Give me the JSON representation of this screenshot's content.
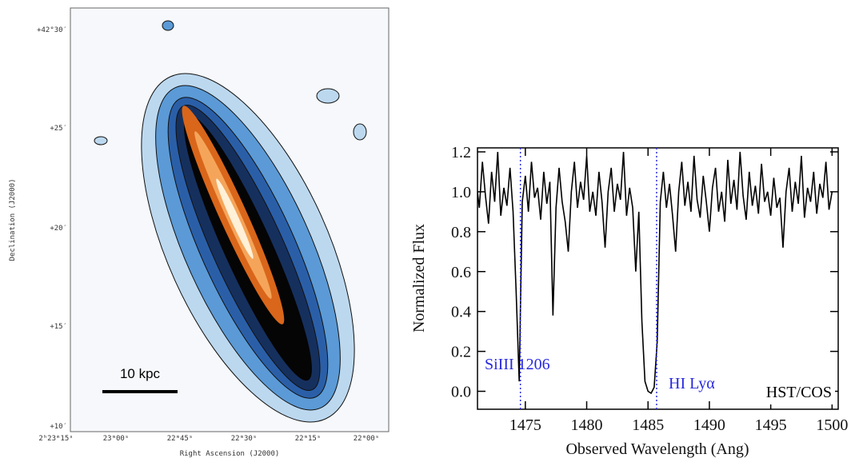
{
  "image_panel": {
    "yticks": [
      "+42°30′",
      "+25′",
      "+20′",
      "+15′",
      "+10′"
    ],
    "xticks": [
      "2ʰ23ᵐ15ˢ",
      "23ᵐ00ˢ",
      "22ᵐ45ˢ",
      "22ᵐ30ˢ",
      "22ᵐ15ˢ",
      "22ᵐ00ˢ"
    ],
    "ylabel": "Declination (J2000)",
    "xlabel": "Right Ascension (J2000)",
    "scale_bar": "10 kpc"
  },
  "chart_data": {
    "type": "line",
    "color": "#000000",
    "xlabel": "Observed Wavelength (Ang)",
    "ylabel": "Normalized Flux",
    "xlim": [
      1471.1,
      1500.5
    ],
    "ylim": [
      -0.09,
      1.22
    ],
    "xticks": [
      1475,
      1480,
      1485,
      1490,
      1495,
      1500
    ],
    "yticks": [
      {
        "value": 0,
        "label": "0.0"
      },
      0.2,
      0.4,
      0.6,
      0.8,
      {
        "value": 1,
        "label": "1.0"
      },
      1.2
    ],
    "grid": false,
    "vlines": [
      1474.6,
      1485.7
    ],
    "vline_color": "#3030e0",
    "annotations": [
      {
        "text": "SiIII 1206",
        "color": "#2828e0"
      },
      {
        "text": "HI Lyα",
        "color": "#2828e0"
      },
      {
        "text": "HST/COS",
        "color": "#000000"
      }
    ],
    "x": [
      1471.0,
      1471.25,
      1471.5,
      1471.75,
      1472.0,
      1472.25,
      1472.5,
      1472.75,
      1473.0,
      1473.25,
      1473.5,
      1473.75,
      1474.0,
      1474.25,
      1474.5,
      1474.75,
      1475.0,
      1475.25,
      1475.5,
      1475.75,
      1476.0,
      1476.25,
      1476.5,
      1476.75,
      1477.0,
      1477.25,
      1477.5,
      1477.75,
      1478.0,
      1478.25,
      1478.5,
      1478.75,
      1479.0,
      1479.25,
      1479.5,
      1479.75,
      1480.0,
      1480.25,
      1480.5,
      1480.75,
      1481.0,
      1481.25,
      1481.5,
      1481.75,
      1482.0,
      1482.25,
      1482.5,
      1482.75,
      1483.0,
      1483.25,
      1483.5,
      1483.75,
      1484.0,
      1484.25,
      1484.5,
      1484.75,
      1485.0,
      1485.25,
      1485.5,
      1485.75,
      1486.0,
      1486.25,
      1486.5,
      1486.75,
      1487.0,
      1487.25,
      1487.5,
      1487.75,
      1488.0,
      1488.25,
      1488.5,
      1488.75,
      1489.0,
      1489.25,
      1489.5,
      1489.75,
      1490.0,
      1490.25,
      1490.5,
      1490.75,
      1491.0,
      1491.25,
      1491.5,
      1491.75,
      1492.0,
      1492.25,
      1492.5,
      1492.75,
      1493.0,
      1493.25,
      1493.5,
      1493.75,
      1494.0,
      1494.25,
      1494.5,
      1494.75,
      1495.0,
      1495.25,
      1495.5,
      1495.75,
      1496.0,
      1496.25,
      1496.5,
      1496.75,
      1497.0,
      1497.25,
      1497.5,
      1497.75,
      1498.0,
      1498.25,
      1498.5,
      1498.75,
      1499.0,
      1499.25,
      1499.5,
      1499.75,
      1500.0
    ],
    "values": [
      1.05,
      0.92,
      1.15,
      0.98,
      0.84,
      1.1,
      0.95,
      1.2,
      0.88,
      1.02,
      0.93,
      1.12,
      0.9,
      0.5,
      0.05,
      0.95,
      1.08,
      0.9,
      1.15,
      0.97,
      1.02,
      0.86,
      1.1,
      0.94,
      1.05,
      0.38,
      0.92,
      1.12,
      0.95,
      0.85,
      0.7,
      1.0,
      1.15,
      0.92,
      1.05,
      0.96,
      1.18,
      0.9,
      1.0,
      0.88,
      1.1,
      0.95,
      0.72,
      1.0,
      1.12,
      0.9,
      1.04,
      0.96,
      1.2,
      0.88,
      1.02,
      0.92,
      0.6,
      0.9,
      0.35,
      0.05,
      0.0,
      -0.01,
      0.02,
      0.25,
      0.95,
      1.1,
      0.92,
      1.04,
      0.88,
      0.7,
      1.0,
      1.15,
      0.93,
      1.05,
      0.9,
      1.18,
      0.96,
      0.87,
      1.08,
      0.95,
      0.8,
      1.02,
      1.12,
      0.9,
      1.0,
      0.85,
      1.16,
      0.94,
      1.06,
      0.91,
      1.2,
      0.98,
      0.86,
      1.1,
      0.93,
      1.03,
      0.89,
      1.14,
      0.95,
      1.0,
      0.88,
      1.07,
      0.92,
      0.97,
      0.72,
      1.0,
      1.12,
      0.9,
      1.05,
      0.94,
      1.18,
      0.87,
      1.02,
      0.95,
      1.1,
      0.89,
      1.04,
      0.97,
      1.15,
      0.91,
      1.0
    ]
  }
}
